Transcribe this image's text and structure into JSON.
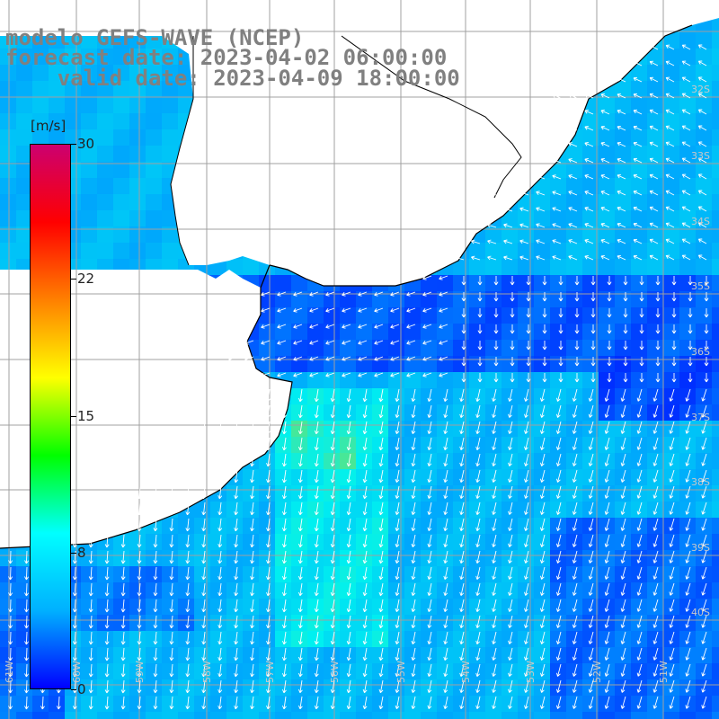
{
  "title": {
    "model": "modelo GEFS-WAVE (NCEP)",
    "forecast": "forecast date: 2023-04-02 06:00:00",
    "valid": "    valid date: 2023-04-09 18:00:00"
  },
  "colorbar": {
    "unit": "[m/s]",
    "ticks": [
      "30",
      "22",
      "15",
      "8",
      "0"
    ],
    "tick_values": [
      30,
      22,
      15,
      8,
      0
    ],
    "colors": [
      "#0000ff",
      "#00b0ff",
      "#00ffff",
      "#00ff00",
      "#ffff00",
      "#ff8000",
      "#ff0000",
      "#cc0070"
    ]
  },
  "map": {
    "lat_labels": [
      "32S",
      "33S",
      "34S",
      "35S",
      "36S",
      "37S",
      "38S",
      "39S",
      "40S"
    ],
    "lon_labels": [
      "61W",
      "60W",
      "59W",
      "58W",
      "57W",
      "56W",
      "55W",
      "54W",
      "53W",
      "52W",
      "51W"
    ],
    "land_color": "#ffffff",
    "grid_color": "#a0a0a0",
    "coast_color": "#000000"
  }
}
